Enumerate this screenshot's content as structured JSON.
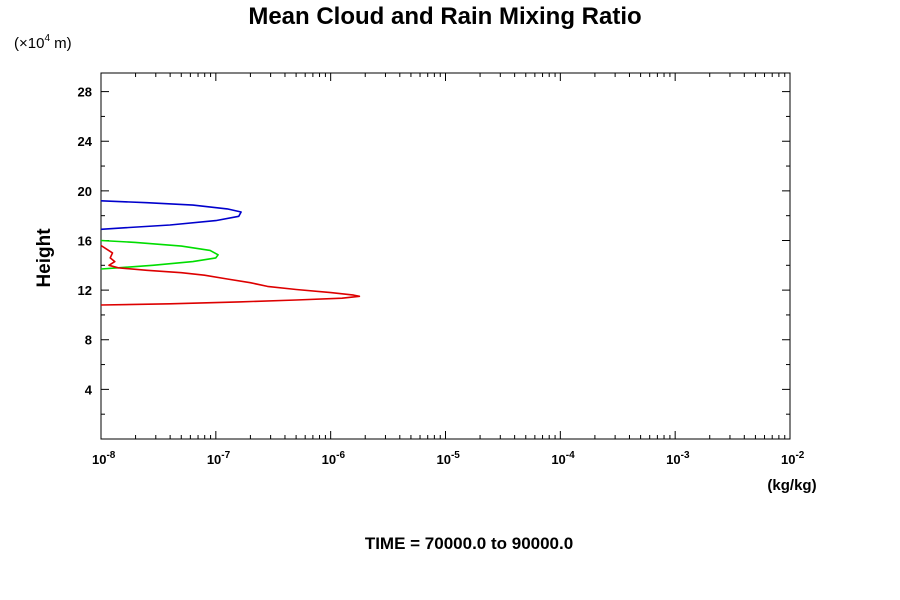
{
  "chart_data": {
    "type": "line",
    "title": "Mean Cloud and Rain Mixing Ratio",
    "ylabel": "Height",
    "yunit_pre": "(×10",
    "yunit_exp": "4",
    "yunit_post": " m)",
    "xunit": "(kg/kg)",
    "footer": "TIME = 70000.0 to 90000.0",
    "xscale": "log",
    "xlim_exp": [
      -8,
      -2
    ],
    "ylim": [
      0,
      29.5
    ],
    "xtick_base": "10",
    "xtick_exps": [
      "-8",
      "-7",
      "-6",
      "-5",
      "-4",
      "-3",
      "-2"
    ],
    "yticks": [
      4,
      8,
      12,
      16,
      20,
      24,
      28
    ],
    "ytick_labels": [
      "4",
      "8",
      "12",
      "16",
      "20",
      "24",
      "28"
    ],
    "series": [
      {
        "name": "blue-profile",
        "color": "#0000cc",
        "points": [
          [
            -8.0,
            19.2
          ],
          [
            -7.6,
            19.05
          ],
          [
            -7.2,
            18.85
          ],
          [
            -6.9,
            18.55
          ],
          [
            -6.78,
            18.3
          ],
          [
            -6.8,
            17.95
          ],
          [
            -7.0,
            17.6
          ],
          [
            -7.4,
            17.25
          ],
          [
            -7.8,
            17.02
          ],
          [
            -8.0,
            16.9
          ]
        ]
      },
      {
        "name": "green-profile",
        "color": "#00dd00",
        "points": [
          [
            -8.0,
            16.0
          ],
          [
            -7.7,
            15.85
          ],
          [
            -7.3,
            15.55
          ],
          [
            -7.05,
            15.2
          ],
          [
            -6.98,
            14.85
          ],
          [
            -7.0,
            14.6
          ],
          [
            -7.2,
            14.3
          ],
          [
            -7.55,
            14.0
          ],
          [
            -7.85,
            13.8
          ],
          [
            -8.0,
            13.7
          ]
        ]
      },
      {
        "name": "red-profile",
        "color": "#dd0000",
        "points": [
          [
            -8.0,
            15.6
          ],
          [
            -7.95,
            15.3
          ],
          [
            -7.9,
            15.0
          ],
          [
            -7.92,
            14.6
          ],
          [
            -7.88,
            14.3
          ],
          [
            -7.93,
            14.0
          ],
          [
            -7.85,
            13.8
          ],
          [
            -7.6,
            13.6
          ],
          [
            -7.3,
            13.4
          ],
          [
            -7.1,
            13.2
          ],
          [
            -6.9,
            12.9
          ],
          [
            -6.7,
            12.6
          ],
          [
            -6.55,
            12.3
          ],
          [
            -6.3,
            12.05
          ],
          [
            -6.0,
            11.8
          ],
          [
            -5.8,
            11.6
          ],
          [
            -5.75,
            11.5
          ],
          [
            -5.9,
            11.35
          ],
          [
            -6.3,
            11.2
          ],
          [
            -6.8,
            11.05
          ],
          [
            -7.4,
            10.9
          ],
          [
            -8.0,
            10.8
          ]
        ]
      }
    ]
  }
}
